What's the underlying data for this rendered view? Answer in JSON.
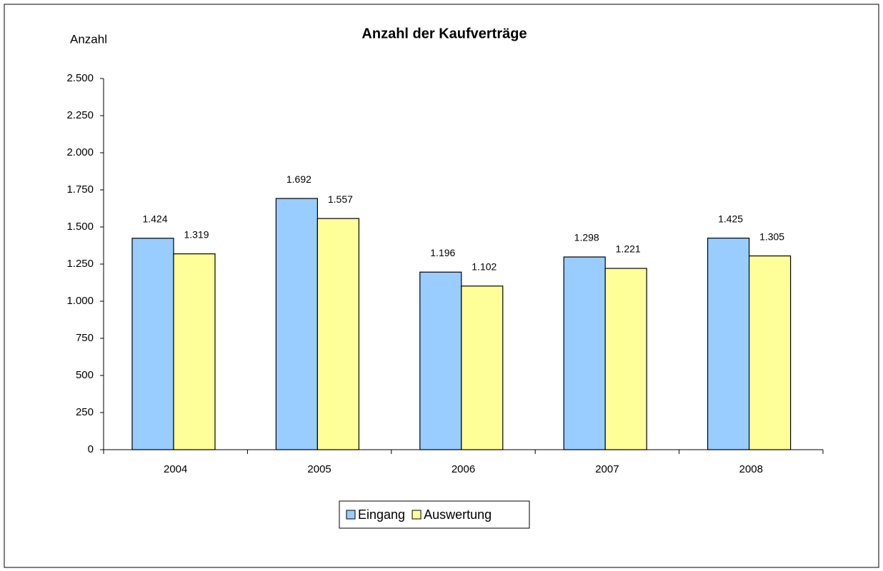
{
  "chart_data": {
    "type": "bar",
    "title": "Anzahl der Kaufverträge",
    "y_label": "Anzahl",
    "categories": [
      "2004",
      "2005",
      "2006",
      "2007",
      "2008"
    ],
    "series": [
      {
        "name": "Eingang",
        "color": "#99ccff",
        "values": [
          1424,
          1692,
          1196,
          1298,
          1425
        ],
        "value_labels": [
          "1.424",
          "1.692",
          "1.196",
          "1.298",
          "1.425"
        ]
      },
      {
        "name": "Auswertung",
        "color": "#ffff99",
        "values": [
          1319,
          1557,
          1102,
          1221,
          1305
        ],
        "value_labels": [
          "1.319",
          "1.557",
          "1.102",
          "1.221",
          "1.305"
        ]
      }
    ],
    "ylim": [
      0,
      2500
    ],
    "yticks": [
      0,
      250,
      500,
      750,
      {
        "value": 1000,
        "label": "1.000"
      },
      {
        "value": 1250,
        "label": "1.250"
      },
      {
        "value": 1500,
        "label": "1.500"
      },
      {
        "value": 1750,
        "label": "1.750"
      },
      {
        "value": 2000,
        "label": "2.000"
      },
      {
        "value": 2250,
        "label": "2.250"
      },
      {
        "value": 2500,
        "label": "2.500"
      }
    ],
    "grid": false,
    "legend": "bottom"
  }
}
